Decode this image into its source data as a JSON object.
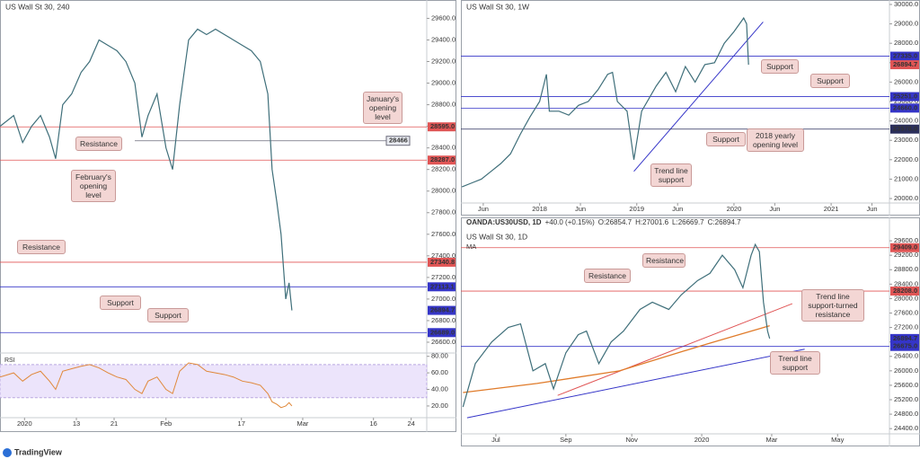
{
  "chart_data": [
    {
      "type": "line",
      "title": "US Wall St 30, 240",
      "color": "#3f6f7a",
      "x": [
        -3.2,
        -0.3,
        1.6,
        3.5,
        5.4,
        7.3,
        8.6,
        10.1,
        12.0,
        14.0,
        15.8,
        17.8,
        19.7,
        21.6,
        23.5,
        25.4,
        26.9,
        28.2,
        30.1,
        32.0,
        33.4,
        34.9,
        36.8,
        38.7,
        40.6,
        42.5,
        44.4,
        46.3,
        48.2,
        50.1,
        52.0,
        53.6,
        54.5,
        55.5,
        56.4,
        57.4,
        58.1,
        58.7
      ],
      "values": [
        28600,
        28700,
        28450,
        28600,
        28700,
        28500,
        28300,
        28800,
        28900,
        29100,
        29200,
        29400,
        29350,
        29300,
        29200,
        29000,
        28500,
        28700,
        28900,
        28400,
        28200,
        28800,
        29400,
        29500,
        29450,
        29500,
        29450,
        29400,
        29350,
        29300,
        29200,
        28900,
        28200,
        27900,
        27600,
        27000,
        27150,
        26894.7
      ],
      "xlim": [
        -3.2,
        87.3
      ],
      "ylim": [
        26500,
        29770
      ],
      "xticks": [
        {
          "value": 2,
          "label": "2020"
        },
        13,
        21,
        {
          "value": 32,
          "label": "Feb"
        },
        {
          "value": 48,
          "label": "17"
        },
        {
          "value": 61,
          "label": "Mar"
        },
        {
          "value": 76,
          "label": "16"
        },
        {
          "value": 84,
          "label": "24"
        }
      ],
      "yticks": [
        {
          "value": 29600,
          "label": "29600.0"
        },
        {
          "value": 29400,
          "label": "29400.0"
        },
        {
          "value": 29200,
          "label": "29200.0"
        },
        {
          "value": 29000,
          "label": "29000.0"
        },
        {
          "value": 28800,
          "label": "28800.0"
        },
        {
          "value": 28600,
          "label": "28600.0"
        },
        {
          "value": 28400,
          "label": "28400.0"
        },
        {
          "value": 28200,
          "label": "28200.0"
        },
        {
          "value": 28000,
          "label": "28000.0"
        },
        {
          "value": 27800,
          "label": "27800.0"
        },
        {
          "value": 27600,
          "label": "27600.0"
        },
        {
          "value": 27400,
          "label": "27400.0"
        },
        {
          "value": 27200,
          "label": "27200.0"
        },
        {
          "value": 27000,
          "label": "27000.0"
        },
        {
          "value": 26800,
          "label": "26800.0"
        },
        {
          "value": 26600,
          "label": "26600.0"
        }
      ],
      "levels": [
        {
          "value": 28595,
          "label": "28595.0",
          "color": "#e05555"
        },
        {
          "value": 28466,
          "color": "#6b6b7a",
          "inline": true
        },
        {
          "value": 28287,
          "label": "28287.0",
          "color": "#e05555"
        },
        {
          "value": 27340.8,
          "color": "#e05555"
        },
        {
          "value": 27113.1,
          "color": "#3535c8"
        },
        {
          "value": 26894.7,
          "color": "#3535c8",
          "tag_only": true
        },
        {
          "value": 26689,
          "label": "26689.0",
          "color": "#3535c8"
        }
      ],
      "annotations": [
        "January's opening level",
        "Resistance",
        "February's opening level",
        "Resistance",
        "Support",
        "Support"
      ],
      "rsi": {
        "label": "RSI",
        "color": "#e0883a",
        "values": [
          55,
          60,
          50,
          58,
          62,
          50,
          40,
          62,
          65,
          68,
          70,
          66,
          60,
          55,
          52,
          40,
          35,
          50,
          55,
          40,
          35,
          62,
          72,
          70,
          62,
          60,
          58,
          55,
          50,
          48,
          45,
          35,
          25,
          22,
          18,
          20,
          24,
          20
        ],
        "ylim": [
          8,
          84
        ],
        "band": [
          30,
          70
        ],
        "yticks": [
          {
            "value": 80,
            "label": "80.00"
          },
          {
            "value": 60,
            "label": "60.00"
          },
          {
            "value": 40,
            "label": "40.00"
          },
          {
            "value": 20,
            "label": "20.00"
          }
        ]
      }
    },
    {
      "type": "line",
      "title": "US Wall St 30, 1W",
      "color": "#3f6f7a",
      "x": [
        2017.2,
        2017.3,
        2017.4,
        2017.5,
        2017.6,
        2017.7,
        2017.8,
        2017.9,
        2018.0,
        2018.07,
        2018.1,
        2018.2,
        2018.3,
        2018.4,
        2018.5,
        2018.6,
        2018.7,
        2018.75,
        2018.8,
        2018.9,
        2018.97,
        2019.05,
        2019.2,
        2019.3,
        2019.4,
        2019.5,
        2019.6,
        2019.7,
        2019.8,
        2019.9,
        2020.0,
        2020.1,
        2020.13,
        2020.15
      ],
      "values": [
        20600,
        20800,
        21000,
        21400,
        21800,
        22300,
        23300,
        24200,
        25000,
        26400,
        24500,
        24500,
        24300,
        24800,
        25000,
        25600,
        26400,
        26500,
        25000,
        24500,
        22000,
        24500,
        25800,
        26500,
        25500,
        26800,
        26000,
        26900,
        27000,
        28000,
        28600,
        29300,
        29000,
        26894.7
      ],
      "xlim": [
        2017.19,
        2021.6
      ],
      "ylim": [
        19770,
        30230
      ],
      "xticks": [
        {
          "value": 2017.42,
          "label": "Jun"
        },
        2018,
        {
          "value": 2018.42,
          "label": "Jun"
        },
        2019,
        {
          "value": 2019.42,
          "label": "Jun"
        },
        2020,
        {
          "value": 2020.42,
          "label": "Jun"
        },
        2021,
        {
          "value": 2021.42,
          "label": "Jun"
        }
      ],
      "yticks": [
        {
          "value": 30000,
          "label": "30000.0"
        },
        {
          "value": 29000,
          "label": "29000.0"
        },
        {
          "value": 28000,
          "label": "28000.0"
        },
        {
          "value": 27000,
          "label": "27000.0"
        },
        {
          "value": 26000,
          "label": "26000.0"
        },
        {
          "value": 25000,
          "label": "25000.0"
        },
        {
          "value": 24000,
          "label": "24000.0"
        },
        {
          "value": 23000,
          "label": "23000.0"
        },
        {
          "value": 22000,
          "label": "22000.0"
        },
        {
          "value": 21000,
          "label": "21000.0"
        },
        {
          "value": 20000,
          "label": "20000.0"
        }
      ],
      "levels": [
        {
          "value": 27335,
          "label": "27335.0",
          "color": "#3535c8"
        },
        {
          "value": 26894.7,
          "color": "#e05555",
          "tag_only": true
        },
        {
          "value": 25251,
          "label": "25251.0",
          "color": "#3535c8"
        },
        {
          "value": 24660,
          "label": "24660.0",
          "color": "#3535c8"
        },
        {
          "value": 23578,
          "label": "23578.0",
          "color": "#2b2f5c"
        }
      ],
      "trendlines": [
        {
          "color": "#3535c8",
          "x": [
            2018.97,
            2020.3
          ],
          "y": [
            21400,
            29100
          ]
        }
      ],
      "annotations": [
        "Support",
        "Support",
        "Support",
        "2018 yearly opening level",
        "Trend line support"
      ]
    },
    {
      "type": "line",
      "title": "US Wall St 30, 1D",
      "color": "#3f6f7a",
      "header": {
        "symbol": "OANDA:US30USD, 1D",
        "change": "+40.0 (+0.15%)",
        "open": "O:26854.7",
        "high": "H:27001.6",
        "low": "L:26669.7",
        "close": "C:26894.7"
      },
      "x": [
        2019.42,
        2019.45,
        2019.49,
        2019.53,
        2019.56,
        2019.59,
        2019.62,
        2019.64,
        2019.67,
        2019.7,
        2019.72,
        2019.75,
        2019.78,
        2019.81,
        2019.85,
        2019.88,
        2019.92,
        2019.95,
        2019.99,
        2020.02,
        2020.05,
        2020.08,
        2020.1,
        2020.12,
        2020.13,
        2020.14,
        2020.15,
        2020.16,
        2020.165
      ],
      "values": [
        25000,
        26200,
        26800,
        27200,
        27300,
        26000,
        26200,
        25500,
        26500,
        27000,
        27100,
        26200,
        26800,
        27100,
        27700,
        27900,
        27700,
        28100,
        28500,
        28700,
        29200,
        28800,
        28300,
        29200,
        29500,
        29300,
        27900,
        27100,
        26894.7
      ],
      "ma": {
        "label": "MA",
        "color": "#e07b2a",
        "x": [
          2019.42,
          2019.6,
          2019.8,
          2020.0,
          2020.165
        ],
        "values": [
          25400,
          25650,
          26000,
          26700,
          27250
        ]
      },
      "xlim": [
        2019.415,
        2020.456
      ],
      "ylim": [
        24280,
        30000
      ],
      "xticks": [
        {
          "value": 2019.5,
          "label": "Jul"
        },
        {
          "value": 2019.67,
          "label": "Sep"
        },
        {
          "value": 2019.83,
          "label": "Nov"
        },
        2020,
        {
          "value": 2020.17,
          "label": "Mar"
        },
        {
          "value": 2020.33,
          "label": "May"
        }
      ],
      "yticks": [
        {
          "value": 29600,
          "label": "29600.0"
        },
        {
          "value": 29200,
          "label": "29200.0"
        },
        {
          "value": 28800,
          "label": "28800.0"
        },
        {
          "value": 28400,
          "label": "28400.0"
        },
        {
          "value": 28000,
          "label": "28000.0"
        },
        {
          "value": 27600,
          "label": "27600.0"
        },
        {
          "value": 27200,
          "label": "27200.0"
        },
        {
          "value": 26800,
          "label": "26800.0"
        },
        {
          "value": 26400,
          "label": "26400.0"
        },
        {
          "value": 26000,
          "label": "26000.0"
        },
        {
          "value": 25600,
          "label": "25600.0"
        },
        {
          "value": 25200,
          "label": "25200.0"
        },
        {
          "value": 24800,
          "label": "24800.0"
        },
        {
          "value": 24400,
          "label": "24400.0"
        }
      ],
      "levels": [
        {
          "value": 29409,
          "label": "29409.0",
          "color": "#e05555"
        },
        {
          "value": 28208,
          "label": "28208.0",
          "color": "#e05555"
        },
        {
          "value": 26894.7,
          "color": "#3535c8",
          "tag_only": true
        },
        {
          "value": 26675,
          "label": "26675.0",
          "color": "#3535c8"
        }
      ],
      "trendlines": [
        {
          "color": "#3535c8",
          "x": [
            2019.43,
            2020.25
          ],
          "y": [
            24700,
            26600
          ]
        },
        {
          "color": "#e05555",
          "x": [
            2019.65,
            2020.22
          ],
          "y": [
            25320,
            27860
          ]
        }
      ],
      "annotations": [
        "Resistance",
        "Resistance",
        "Trend line support-turned resistance",
        "Trend line support"
      ]
    }
  ],
  "footer": {
    "brand": "TradingView"
  }
}
